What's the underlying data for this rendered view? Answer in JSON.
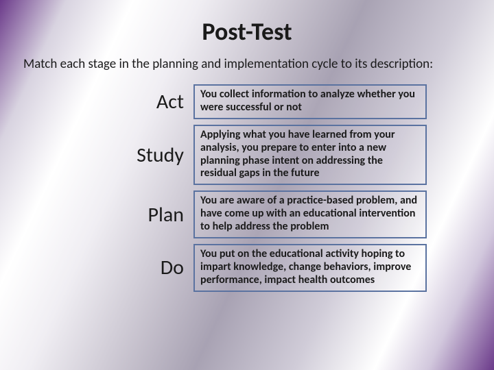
{
  "title": "Post-Test",
  "instruction": "Match each stage in the planning and implementation cycle to its description:",
  "rows": [
    {
      "stage": "Act",
      "description": "You collect information to analyze whether you were successful or not"
    },
    {
      "stage": "Study",
      "description": "Applying what you have learned from your analysis, you prepare to enter into a new planning phase intent on addressing the residual gaps in the future"
    },
    {
      "stage": "Plan",
      "description": "You are aware of a practice-based problem, and have come up with an educational intervention to help address the problem"
    },
    {
      "stage": "Do",
      "description": "You put on the educational activity hoping to impart knowledge, change behaviors, improve performance, impact health outcomes"
    }
  ],
  "style": {
    "border_color": "#5a72a0",
    "title_fontsize": 36,
    "instruction_fontsize": 19,
    "stage_fontsize": 30,
    "desc_fontsize": 16,
    "desc_fontweight": 700,
    "text_color": "#1a1a1a",
    "slide_width": 720,
    "slide_height": 540
  }
}
